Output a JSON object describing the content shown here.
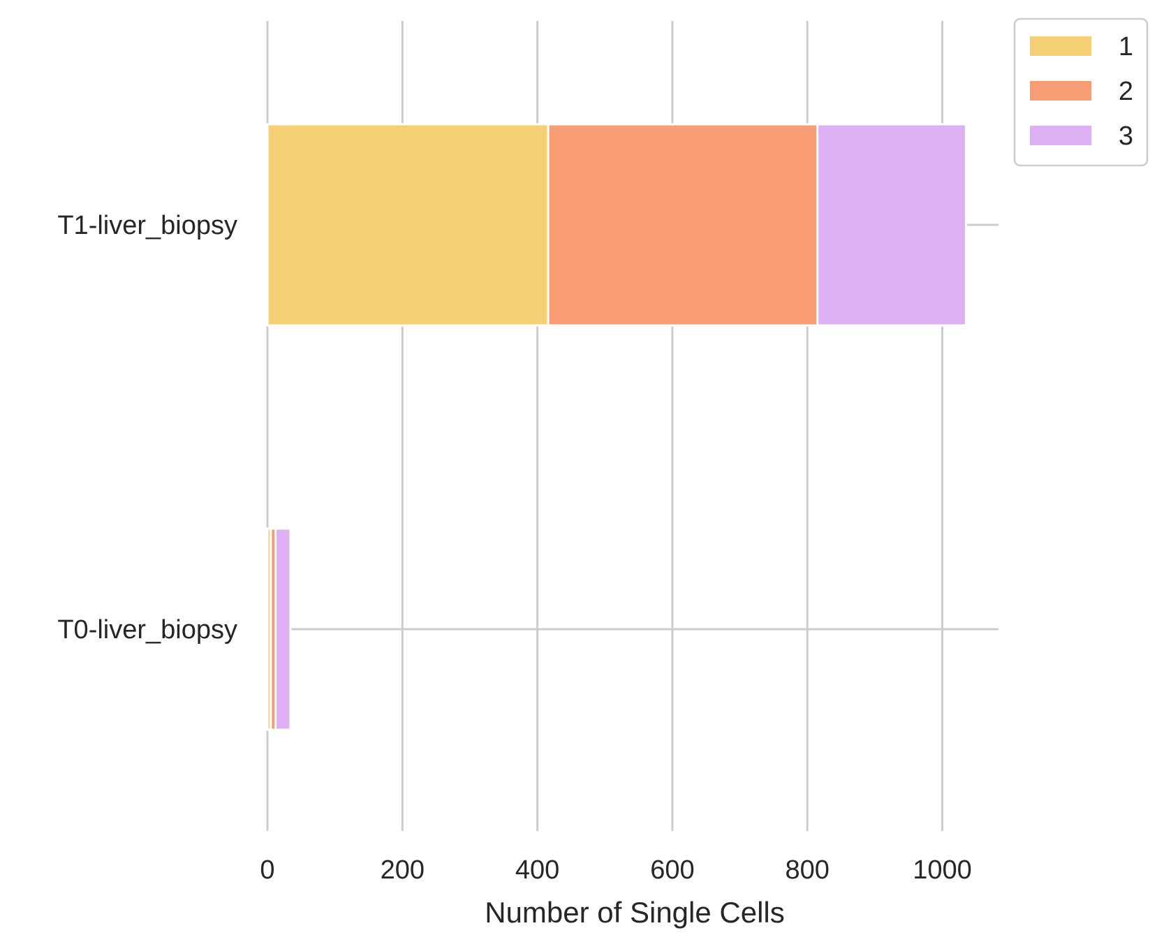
{
  "chart_data": {
    "type": "bar",
    "orientation": "horizontal",
    "stacked": true,
    "categories": [
      "T1-liver_biopsy",
      "T0-liver_biopsy"
    ],
    "series": [
      {
        "name": "1",
        "color": "#F5CF73",
        "values": [
          416,
          5
        ]
      },
      {
        "name": "2",
        "color": "#F89C74",
        "values": [
          399,
          7
        ]
      },
      {
        "name": "3",
        "color": "#DCB0F2",
        "values": [
          220,
          22
        ]
      }
    ],
    "xlabel": "Number of Single Cells",
    "ylabel": "",
    "xlim": [
      0,
      1085
    ],
    "xticks": [
      0,
      200,
      400,
      600,
      800,
      1000
    ],
    "xtick_labels": [
      "0",
      "200",
      "400",
      "600",
      "800",
      "1000"
    ],
    "grid": true,
    "legend_position": "upper-right-outside"
  }
}
